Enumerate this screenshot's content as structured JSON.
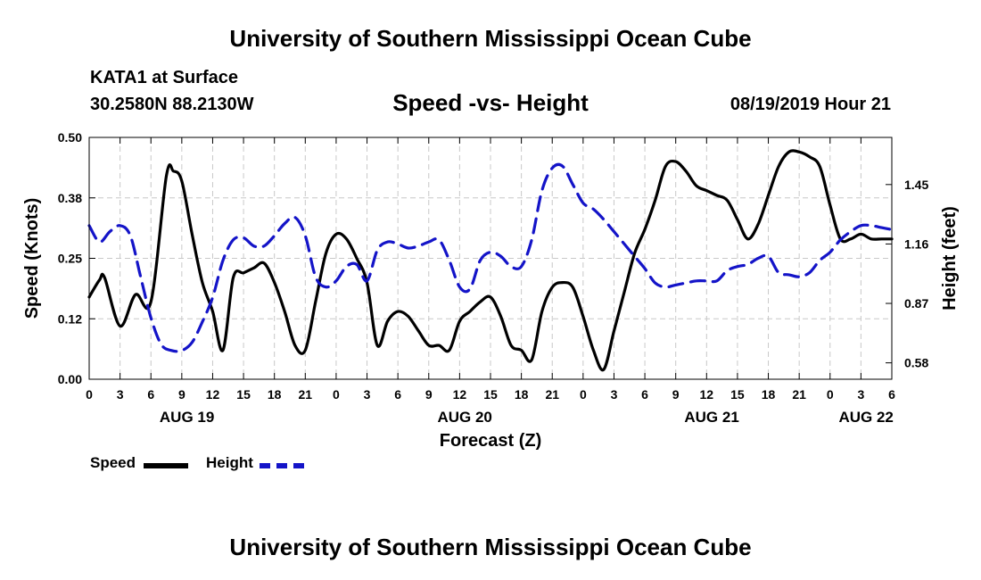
{
  "header": {
    "org_title": "University of Southern Mississippi Ocean Cube",
    "station": "KATA1 at Surface",
    "coords": "30.2580N 88.2130W",
    "chart_title": "Speed -vs- Height",
    "datetime": "08/19/2019 Hour 21"
  },
  "footer": {
    "org_title": "University of Southern Mississippi Ocean Cube"
  },
  "legend": {
    "speed_label": "Speed",
    "height_label": "Height"
  },
  "colors": {
    "speed": "#000000",
    "height": "#1414c8",
    "grid": "#c8c8c8"
  },
  "chart_data": {
    "type": "line",
    "title": "Speed -vs- Height",
    "xlabel": "Forecast (Z)",
    "ylabel": "Speed (Knots)",
    "y2label": "Height (feet)",
    "xlim": [
      0,
      78
    ],
    "ylim": [
      0,
      0.5
    ],
    "y2lim": [
      0.5,
      1.68
    ],
    "grid": true,
    "x_ticks": [
      0,
      3,
      6,
      9,
      12,
      15,
      18,
      21,
      24,
      27,
      30,
      33,
      36,
      39,
      42,
      45,
      48,
      51,
      54,
      57,
      60,
      63,
      66,
      69,
      72,
      75,
      78
    ],
    "x_tick_labels": [
      "0",
      "3",
      "6",
      "9",
      "12",
      "15",
      "18",
      "21",
      "0",
      "3",
      "6",
      "9",
      "12",
      "15",
      "18",
      "21",
      "0",
      "3",
      "6",
      "9",
      "12",
      "15",
      "18",
      "21",
      "0",
      "3",
      "6"
    ],
    "day_labels": [
      {
        "label": "AUG 19",
        "at": 9.5
      },
      {
        "label": "AUG 20",
        "at": 36.5
      },
      {
        "label": "AUG 21",
        "at": 60.5
      },
      {
        "label": "AUG 22",
        "at": 75.5
      }
    ],
    "y_ticks": [
      0,
      0.125,
      0.25,
      0.375,
      0.5
    ],
    "y_tick_labels": [
      "0.00",
      "0.12",
      "0.25",
      "0.38",
      "0.50"
    ],
    "y2_ticks": [
      0.58,
      0.87,
      1.16,
      1.45
    ],
    "y2_tick_labels": [
      "0.58",
      "0.87",
      "1.16",
      "1.45"
    ],
    "series": [
      {
        "name": "Speed",
        "axis": "left",
        "style": "solid",
        "x": [
          0,
          1,
          1.5,
          3,
          4.5,
          6,
          7.5,
          8.2,
          9,
          10,
          11,
          12,
          13,
          14,
          15,
          16,
          17,
          18,
          19,
          20,
          21,
          22,
          23,
          24,
          25,
          26,
          27,
          28,
          29,
          30,
          31,
          32,
          33,
          34,
          35,
          36,
          37,
          38,
          39,
          40,
          41,
          42,
          43,
          44,
          45,
          46,
          47,
          48,
          49,
          50,
          51,
          52,
          53,
          54,
          55,
          56,
          57,
          58,
          59,
          60,
          61,
          62,
          63,
          64,
          65,
          66,
          67,
          68,
          69,
          70,
          71,
          72,
          73,
          74,
          75,
          76,
          77,
          78
        ],
        "values": [
          0.17,
          0.205,
          0.21,
          0.11,
          0.175,
          0.16,
          0.42,
          0.43,
          0.41,
          0.3,
          0.2,
          0.14,
          0.06,
          0.21,
          0.22,
          0.23,
          0.24,
          0.2,
          0.14,
          0.07,
          0.06,
          0.16,
          0.26,
          0.3,
          0.29,
          0.25,
          0.2,
          0.07,
          0.12,
          0.14,
          0.13,
          0.1,
          0.07,
          0.07,
          0.06,
          0.12,
          0.14,
          0.16,
          0.17,
          0.13,
          0.07,
          0.06,
          0.04,
          0.14,
          0.19,
          0.2,
          0.19,
          0.13,
          0.06,
          0.02,
          0.1,
          0.18,
          0.26,
          0.31,
          0.37,
          0.44,
          0.45,
          0.43,
          0.4,
          0.39,
          0.38,
          0.37,
          0.33,
          0.29,
          0.32,
          0.38,
          0.44,
          0.47,
          0.47,
          0.46,
          0.44,
          0.36,
          0.29,
          0.29,
          0.3,
          0.29,
          0.29,
          0.29
        ]
      },
      {
        "name": "Height",
        "axis": "right",
        "style": "dashed",
        "x": [
          0,
          1,
          2,
          3,
          4,
          5,
          6,
          7,
          8,
          9,
          10,
          11,
          12,
          13,
          14,
          15,
          16,
          17,
          18,
          19,
          20,
          21,
          22,
          23,
          24,
          25,
          26,
          27,
          28,
          29,
          30,
          31,
          32,
          33,
          34,
          35,
          36,
          37,
          38,
          39,
          40,
          41,
          42,
          43,
          44,
          45,
          46,
          47,
          48,
          49,
          50,
          51,
          52,
          53,
          54,
          55,
          56,
          57,
          58,
          59,
          60,
          61,
          62,
          63,
          64,
          65,
          66,
          67,
          68,
          69,
          70,
          71,
          72,
          73,
          74,
          75,
          76,
          77,
          78
        ],
        "values": [
          1.25,
          1.17,
          1.22,
          1.25,
          1.2,
          1.0,
          0.8,
          0.67,
          0.64,
          0.64,
          0.68,
          0.78,
          0.9,
          1.08,
          1.18,
          1.19,
          1.15,
          1.15,
          1.2,
          1.26,
          1.29,
          1.2,
          1.0,
          0.95,
          0.98,
          1.05,
          1.06,
          0.98,
          1.13,
          1.17,
          1.16,
          1.14,
          1.15,
          1.17,
          1.18,
          1.08,
          0.95,
          0.94,
          1.08,
          1.12,
          1.1,
          1.05,
          1.05,
          1.18,
          1.42,
          1.53,
          1.54,
          1.45,
          1.36,
          1.33,
          1.28,
          1.22,
          1.16,
          1.1,
          1.04,
          0.97,
          0.95,
          0.96,
          0.97,
          0.98,
          0.98,
          0.98,
          1.03,
          1.05,
          1.06,
          1.09,
          1.1,
          1.02,
          1.01,
          1.0,
          1.02,
          1.08,
          1.12,
          1.18,
          1.22,
          1.25,
          1.25,
          1.24,
          1.23
        ]
      }
    ]
  }
}
